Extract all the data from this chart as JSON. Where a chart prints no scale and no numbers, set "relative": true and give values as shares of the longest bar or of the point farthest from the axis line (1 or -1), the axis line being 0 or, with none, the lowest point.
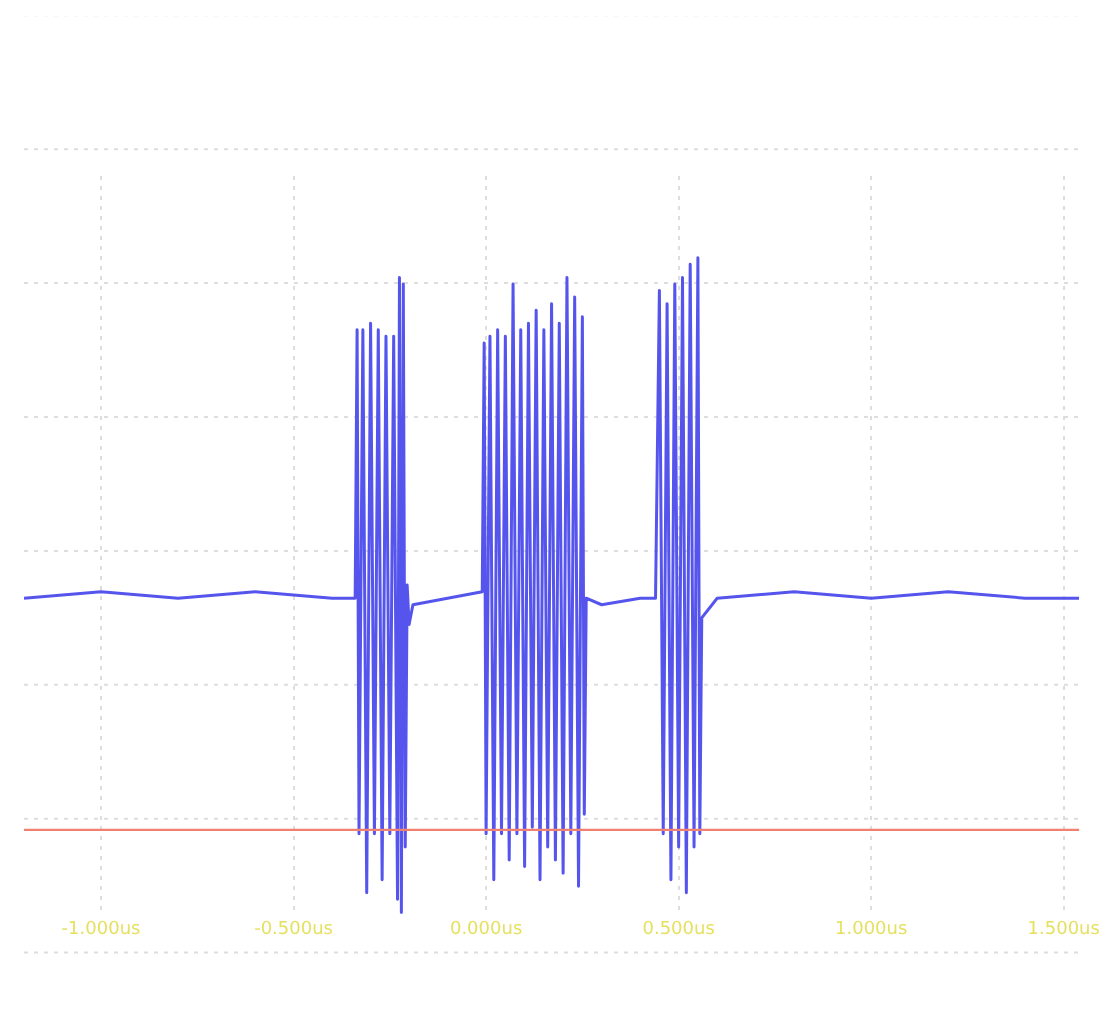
{
  "chart_data": {
    "type": "line",
    "relative": true,
    "grid": true,
    "tick_labels": "x",
    "marker": "none",
    "line_style": "solid",
    "xlim": [
      -1.2,
      1.54
    ],
    "xticks": [
      {
        "value": -1,
        "label": "-1.000us"
      },
      {
        "value": -0.5,
        "label": "-0.500us"
      },
      {
        "value": 0,
        "label": "0.000us"
      },
      {
        "value": 0.5,
        "label": "0.500us"
      },
      {
        "value": 1,
        "label": "1.000us"
      },
      {
        "value": 1.5,
        "label": "1.500us"
      }
    ],
    "ref_lines": [
      {
        "axis": "y",
        "value": 0.126,
        "color": "#f08070"
      }
    ],
    "series": [
      {
        "color": "#5555ee",
        "x": [
          -1.2,
          -1.0,
          -0.8,
          -0.6,
          -0.4,
          -0.34,
          -0.335,
          -0.33,
          -0.32,
          -0.31,
          -0.3,
          -0.29,
          -0.28,
          -0.27,
          -0.26,
          -0.25,
          -0.24,
          -0.23,
          -0.225,
          -0.22,
          -0.215,
          -0.21,
          -0.205,
          -0.2,
          -0.19,
          -0.1,
          -0.01,
          -0.005,
          0.0,
          0.01,
          0.02,
          0.03,
          0.04,
          0.05,
          0.06,
          0.07,
          0.08,
          0.09,
          0.1,
          0.11,
          0.12,
          0.13,
          0.14,
          0.15,
          0.16,
          0.17,
          0.18,
          0.19,
          0.2,
          0.21,
          0.22,
          0.23,
          0.24,
          0.25,
          0.255,
          0.26,
          0.3,
          0.4,
          0.44,
          0.45,
          0.46,
          0.47,
          0.48,
          0.49,
          0.5,
          0.51,
          0.52,
          0.53,
          0.54,
          0.55,
          0.555,
          0.56,
          0.6,
          0.8,
          1.0,
          1.2,
          1.4,
          1.54
        ],
        "values": [
          0.48,
          0.49,
          0.48,
          0.49,
          0.48,
          0.48,
          0.89,
          0.12,
          0.89,
          0.03,
          0.9,
          0.12,
          0.89,
          0.05,
          0.88,
          0.12,
          0.88,
          0.02,
          0.97,
          0.0,
          0.96,
          0.1,
          0.5,
          0.44,
          0.47,
          0.48,
          0.49,
          0.87,
          0.12,
          0.88,
          0.05,
          0.89,
          0.12,
          0.88,
          0.08,
          0.96,
          0.12,
          0.89,
          0.07,
          0.9,
          0.13,
          0.92,
          0.05,
          0.89,
          0.1,
          0.93,
          0.08,
          0.9,
          0.06,
          0.97,
          0.12,
          0.94,
          0.04,
          0.91,
          0.15,
          0.48,
          0.47,
          0.48,
          0.48,
          0.95,
          0.12,
          0.93,
          0.05,
          0.96,
          0.1,
          0.97,
          0.03,
          0.99,
          0.1,
          1.0,
          0.12,
          0.45,
          0.48,
          0.49,
          0.48,
          0.49,
          0.48,
          0.48
        ]
      }
    ]
  }
}
